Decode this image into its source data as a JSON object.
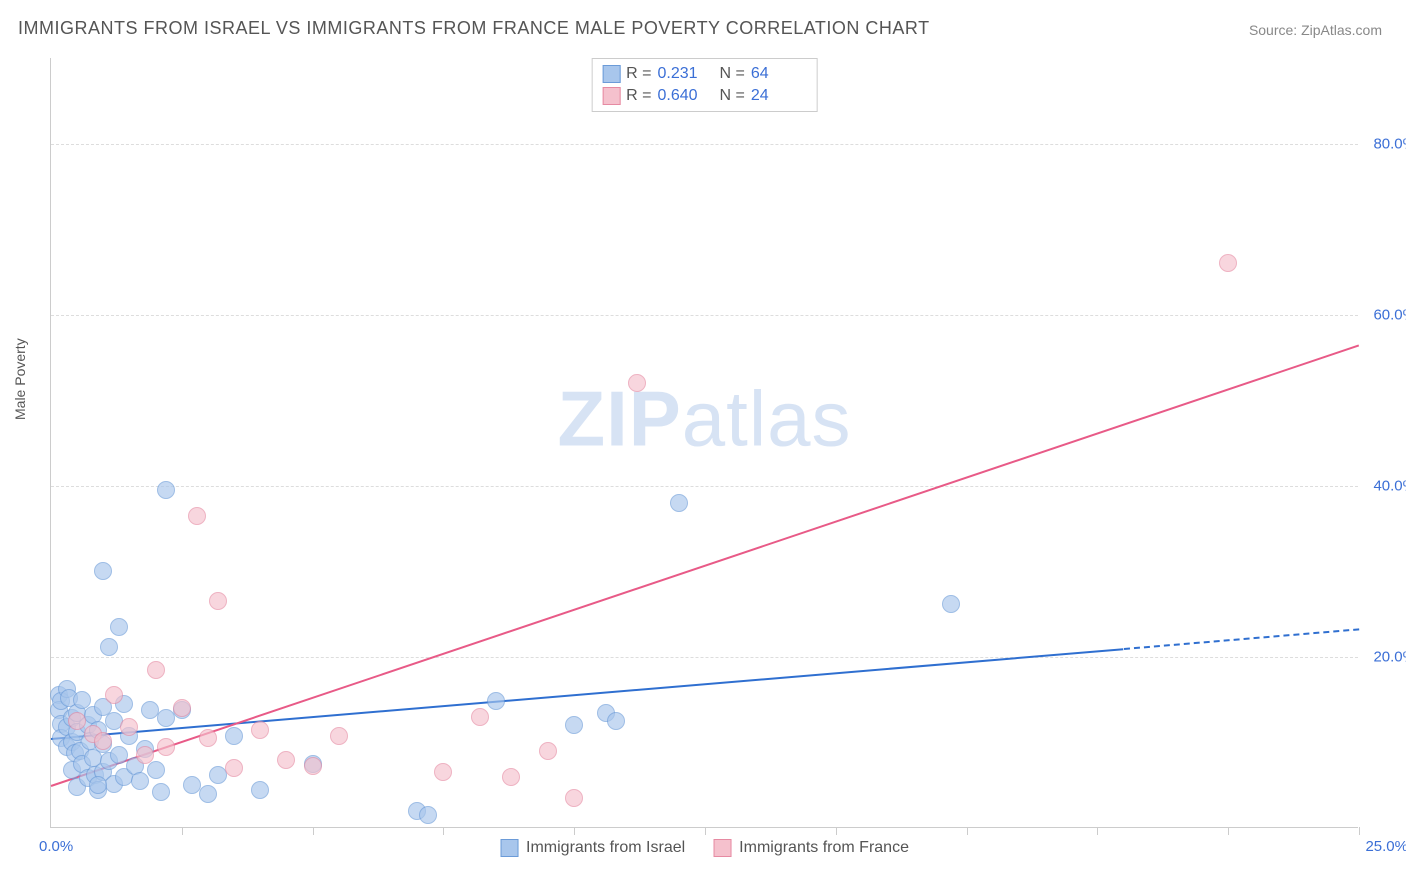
{
  "title": "IMMIGRANTS FROM ISRAEL VS IMMIGRANTS FROM FRANCE MALE POVERTY CORRELATION CHART",
  "source": "Source: ZipAtlas.com",
  "ylabel": "Male Poverty",
  "watermark_zip": "ZIP",
  "watermark_atlas": "atlas",
  "chart": {
    "type": "scatter",
    "xlim": [
      0,
      25
    ],
    "ylim": [
      0,
      90
    ],
    "x_origin_label": "0.0%",
    "x_max_label": "25.0%",
    "x_tick_positions": [
      2.5,
      5,
      7.5,
      10,
      12.5,
      15,
      17.5,
      20,
      22.5,
      25
    ],
    "y_ticks": [
      {
        "v": 20,
        "label": "20.0%"
      },
      {
        "v": 40,
        "label": "40.0%"
      },
      {
        "v": 60,
        "label": "60.0%"
      },
      {
        "v": 80,
        "label": "80.0%"
      }
    ],
    "background_color": "#ffffff",
    "grid_color": "#dddddd",
    "axis_color": "#cccccc",
    "marker_radius": 9,
    "series": [
      {
        "name": "Immigrants from Israel",
        "fill": "#a8c6ec",
        "stroke": "#6b9bd8",
        "fill_opacity": 0.65,
        "r_label": "R =",
        "r_value": "0.231",
        "n_label": "N =",
        "n_value": "64",
        "trend": {
          "x1": 0,
          "y1": 10.5,
          "x2": 20.5,
          "y2": 21,
          "dash_to_x": 25,
          "dash_to_y": 23.3,
          "color": "#2f6fd0"
        },
        "points": [
          [
            0.15,
            15.5
          ],
          [
            0.15,
            13.8
          ],
          [
            0.2,
            14.8
          ],
          [
            0.2,
            12.2
          ],
          [
            0.2,
            10.5
          ],
          [
            0.3,
            16.2
          ],
          [
            0.3,
            11.8
          ],
          [
            0.3,
            9.5
          ],
          [
            0.35,
            15.2
          ],
          [
            0.4,
            12.8
          ],
          [
            0.4,
            10.0
          ],
          [
            0.4,
            6.8
          ],
          [
            0.45,
            8.8
          ],
          [
            0.5,
            13.5
          ],
          [
            0.5,
            11.2
          ],
          [
            0.5,
            4.8
          ],
          [
            0.55,
            9.0
          ],
          [
            0.6,
            15.0
          ],
          [
            0.6,
            7.5
          ],
          [
            0.7,
            12.0
          ],
          [
            0.7,
            5.8
          ],
          [
            0.75,
            10.2
          ],
          [
            0.8,
            13.2
          ],
          [
            0.8,
            8.2
          ],
          [
            0.85,
            6.2
          ],
          [
            0.9,
            11.5
          ],
          [
            0.9,
            4.5
          ],
          [
            1.0,
            30.0
          ],
          [
            1.0,
            14.2
          ],
          [
            1.0,
            9.8
          ],
          [
            1.0,
            6.5
          ],
          [
            1.1,
            21.2
          ],
          [
            1.1,
            7.8
          ],
          [
            1.2,
            12.5
          ],
          [
            1.2,
            5.2
          ],
          [
            1.3,
            23.5
          ],
          [
            1.3,
            8.5
          ],
          [
            1.4,
            14.5
          ],
          [
            1.4,
            6.0
          ],
          [
            1.5,
            10.8
          ],
          [
            1.6,
            7.2
          ],
          [
            1.7,
            5.5
          ],
          [
            1.8,
            9.2
          ],
          [
            1.9,
            13.8
          ],
          [
            2.0,
            6.8
          ],
          [
            2.1,
            4.2
          ],
          [
            2.2,
            39.5
          ],
          [
            2.2,
            12.8
          ],
          [
            2.5,
            13.8
          ],
          [
            2.7,
            5.0
          ],
          [
            3.0,
            4.0
          ],
          [
            3.2,
            6.2
          ],
          [
            3.5,
            10.8
          ],
          [
            4.0,
            4.5
          ],
          [
            5.0,
            7.5
          ],
          [
            7.0,
            2.0
          ],
          [
            7.2,
            1.5
          ],
          [
            8.5,
            14.8
          ],
          [
            10.0,
            12.0
          ],
          [
            10.6,
            13.5
          ],
          [
            10.8,
            12.5
          ],
          [
            12.0,
            38.0
          ],
          [
            17.2,
            26.2
          ],
          [
            0.9,
            5.0
          ]
        ]
      },
      {
        "name": "Immigrants from France",
        "fill": "#f5c1cd",
        "stroke": "#e68aa2",
        "fill_opacity": 0.65,
        "r_label": "R =",
        "r_value": "0.640",
        "n_label": "N =",
        "n_value": "24",
        "trend": {
          "x1": 0,
          "y1": 5.0,
          "x2": 25,
          "y2": 56.5,
          "color": "#e85a87"
        },
        "points": [
          [
            0.5,
            12.5
          ],
          [
            0.8,
            11.0
          ],
          [
            1.0,
            10.2
          ],
          [
            1.2,
            15.5
          ],
          [
            1.5,
            11.8
          ],
          [
            1.8,
            8.5
          ],
          [
            2.0,
            18.5
          ],
          [
            2.2,
            9.5
          ],
          [
            2.5,
            14.0
          ],
          [
            2.8,
            36.5
          ],
          [
            3.0,
            10.5
          ],
          [
            3.2,
            26.5
          ],
          [
            3.5,
            7.0
          ],
          [
            4.0,
            11.5
          ],
          [
            4.5,
            8.0
          ],
          [
            5.0,
            7.2
          ],
          [
            5.5,
            10.8
          ],
          [
            7.5,
            6.5
          ],
          [
            8.2,
            13.0
          ],
          [
            8.8,
            6.0
          ],
          [
            9.5,
            9.0
          ],
          [
            10.0,
            3.5
          ],
          [
            11.2,
            52.0
          ],
          [
            22.5,
            66.0
          ]
        ]
      }
    ]
  },
  "legend_bottom": [
    {
      "label": "Immigrants from Israel",
      "fill": "#a8c6ec",
      "stroke": "#6b9bd8"
    },
    {
      "label": "Immigrants from France",
      "fill": "#f5c1cd",
      "stroke": "#e68aa2"
    }
  ]
}
